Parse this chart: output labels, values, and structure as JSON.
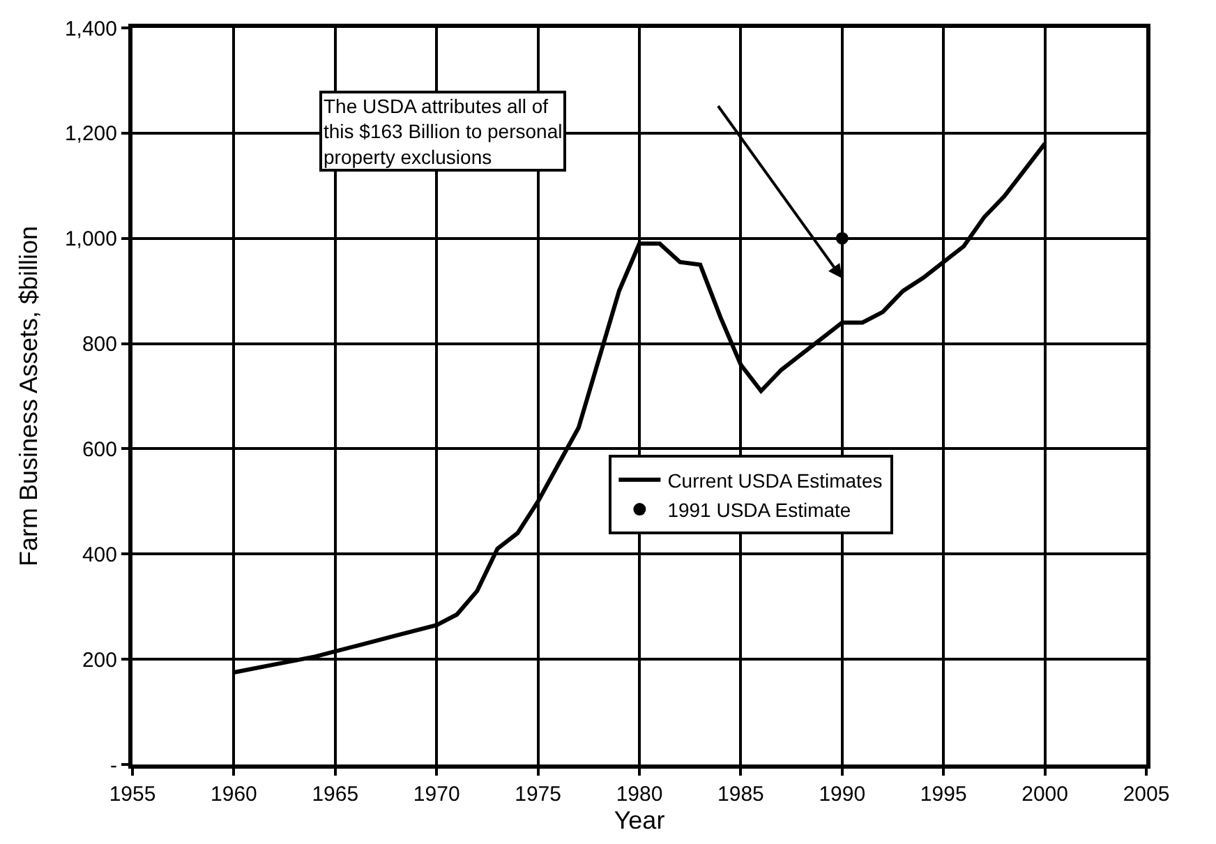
{
  "chart_data": {
    "type": "line",
    "xlabel": "Year",
    "ylabel": "Farm Business Assets, $billion",
    "xlim": [
      1955,
      2005
    ],
    "xticks": [
      1955,
      1960,
      1965,
      1970,
      1975,
      1980,
      1985,
      1990,
      1995,
      2000,
      2005
    ],
    "ylim": [
      0,
      1400
    ],
    "yticks": [
      {
        "value": 0,
        "label": "-"
      },
      {
        "value": 200,
        "label": "200"
      },
      {
        "value": 400,
        "label": "400"
      },
      {
        "value": 600,
        "label": "600"
      },
      {
        "value": 800,
        "label": "800"
      },
      {
        "value": 1000,
        "label": "1,000"
      },
      {
        "value": 1200,
        "label": "1,200"
      },
      {
        "value": 1400,
        "label": "1,400"
      }
    ],
    "grid": true,
    "legend": "center",
    "series": [
      {
        "name": "Current USDA Estimates",
        "color": "#000000",
        "x": [
          1960,
          1962,
          1964,
          1966,
          1968,
          1970,
          1971,
          1972,
          1973,
          1974,
          1975,
          1976,
          1977,
          1978,
          1979,
          1980,
          1981,
          1982,
          1983,
          1984,
          1985,
          1986,
          1987,
          1988,
          1989,
          1990,
          1991,
          1992,
          1993,
          1994,
          1995,
          1996,
          1997,
          1998,
          1999,
          2000
        ],
        "values": [
          175,
          190,
          205,
          225,
          245,
          265,
          285,
          330,
          410,
          440,
          500,
          570,
          640,
          770,
          900,
          990,
          990,
          955,
          950,
          850,
          760,
          710,
          750,
          780,
          810,
          840,
          840,
          860,
          900,
          925,
          955,
          985,
          1040,
          1080,
          1130,
          1180
        ]
      },
      {
        "name": "1991 USDA Estimate",
        "type": "scatter",
        "color": "#000000",
        "x": [
          1990
        ],
        "values": [
          1000
        ]
      }
    ],
    "annotations": [
      "The USDA attributes all of\nthis $163 Billion to personal\nproperty exclusions"
    ]
  }
}
